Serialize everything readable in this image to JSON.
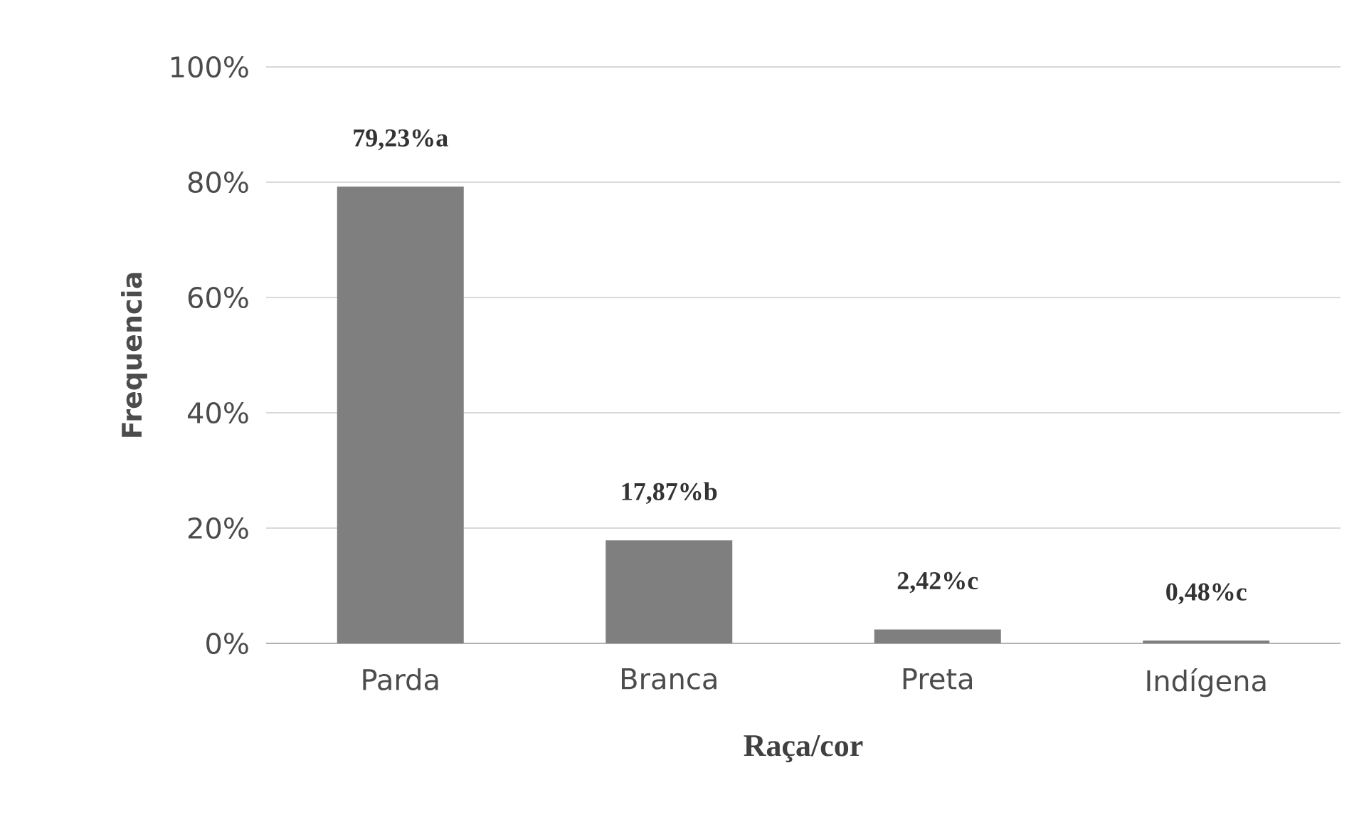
{
  "chart_data": {
    "type": "bar",
    "xlabel": "Raça/cor",
    "ylabel": "Frequencia",
    "categories": [
      "Parda",
      "Branca",
      "Preta",
      "Indígena"
    ],
    "values": [
      79.23,
      17.87,
      2.42,
      0.48
    ],
    "color": "#7f7f7f",
    "value_labels": [
      "79,23%a",
      "17,87%b",
      "2,42%c",
      "0,48%c"
    ],
    "ylim": [
      0,
      100
    ],
    "yticks": [
      {
        "value": 0,
        "label": "0%"
      },
      {
        "value": 20,
        "label": "20%"
      },
      {
        "value": 40,
        "label": "40%"
      },
      {
        "value": 60,
        "label": "60%"
      },
      {
        "value": 80,
        "label": "80%"
      },
      {
        "value": 100,
        "label": "100%"
      }
    ],
    "grid": "y"
  }
}
